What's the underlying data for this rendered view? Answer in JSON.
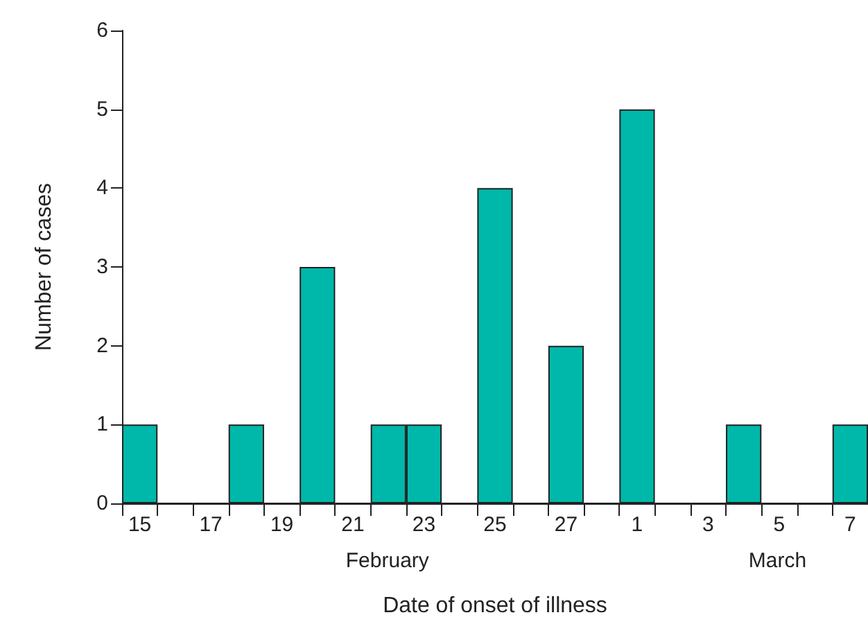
{
  "chart_data": {
    "type": "bar",
    "xlabel": "Date of onset of illness",
    "ylabel": "Number of cases",
    "categories": [
      "15",
      null,
      "17",
      null,
      "19",
      null,
      "21",
      null,
      "23",
      null,
      "25",
      null,
      "27",
      null,
      "1",
      null,
      "3",
      null,
      "5",
      null,
      "7"
    ],
    "values": [
      1,
      0,
      0,
      1,
      0,
      3,
      0,
      1,
      1,
      0,
      4,
      0,
      2,
      0,
      5,
      0,
      0,
      1,
      0,
      0,
      1
    ],
    "color": "#00b8aa",
    "ylim": [
      0,
      6
    ],
    "yticks": [
      0,
      1,
      2,
      3,
      4,
      5,
      6
    ],
    "grid": false,
    "annotations": [
      "February",
      "March"
    ]
  }
}
